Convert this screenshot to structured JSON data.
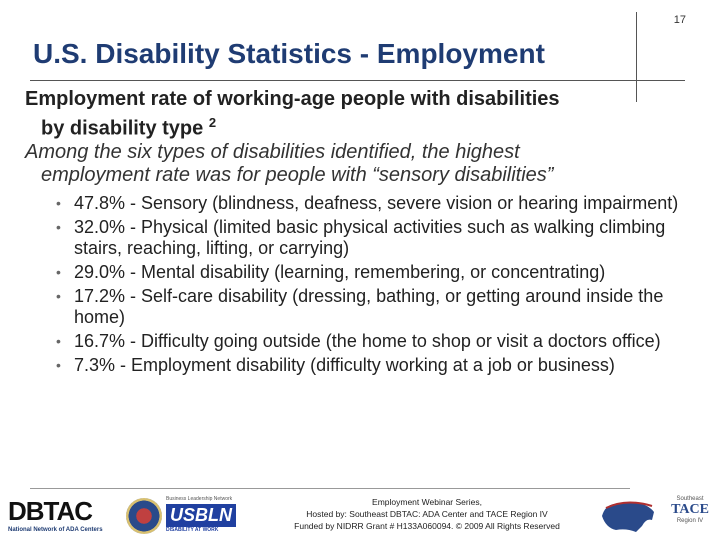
{
  "slide_number": "17",
  "title": "U.S. Disability Statistics - Employment",
  "heading": {
    "line1": "Employment rate of working-age people with disabilities",
    "line2": "by disability type",
    "superscript": "2"
  },
  "intro": {
    "line1": "Among the six types of disabilities identified, the highest",
    "line2": "employment rate was for people with “sensory disabilities”"
  },
  "bullets": [
    "47.8% - Sensory (blindness, deafness, severe vision or hearing impairment)",
    "32.0% - Physical (limited basic physical activities such as walking climbing stairs, reaching, lifting, or carrying)",
    "29.0% - Mental disability (learning, remembering, or concentrating)",
    "17.2% - Self-care disability (dressing, bathing, or getting around inside the home)",
    "16.7% - Difficulty going outside (the home to shop or visit a doctors office)",
    "7.3% - Employment disability (difficulty working at a job or business)"
  ],
  "footer": {
    "line1": "Employment Webinar Series,",
    "line2": "Hosted by: Southeast DBTAC: ADA Center and TACE Region IV",
    "line3": "Funded by NIDRR Grant # H133A060094. © 2009 All Rights Reserved",
    "logos": {
      "dbtac": "DBTAC",
      "dbtac_sub": "National Network of ADA Centers",
      "usbln_top": "Business Leadership Network",
      "usbln": "USBLN",
      "usbln_tag": "DISABILITY AT WORK",
      "tace_small": "Southeast",
      "tace": "TACE",
      "tace_region": "Region IV"
    }
  },
  "colors": {
    "title": "#1f3c73",
    "accent": "#2040a0"
  }
}
